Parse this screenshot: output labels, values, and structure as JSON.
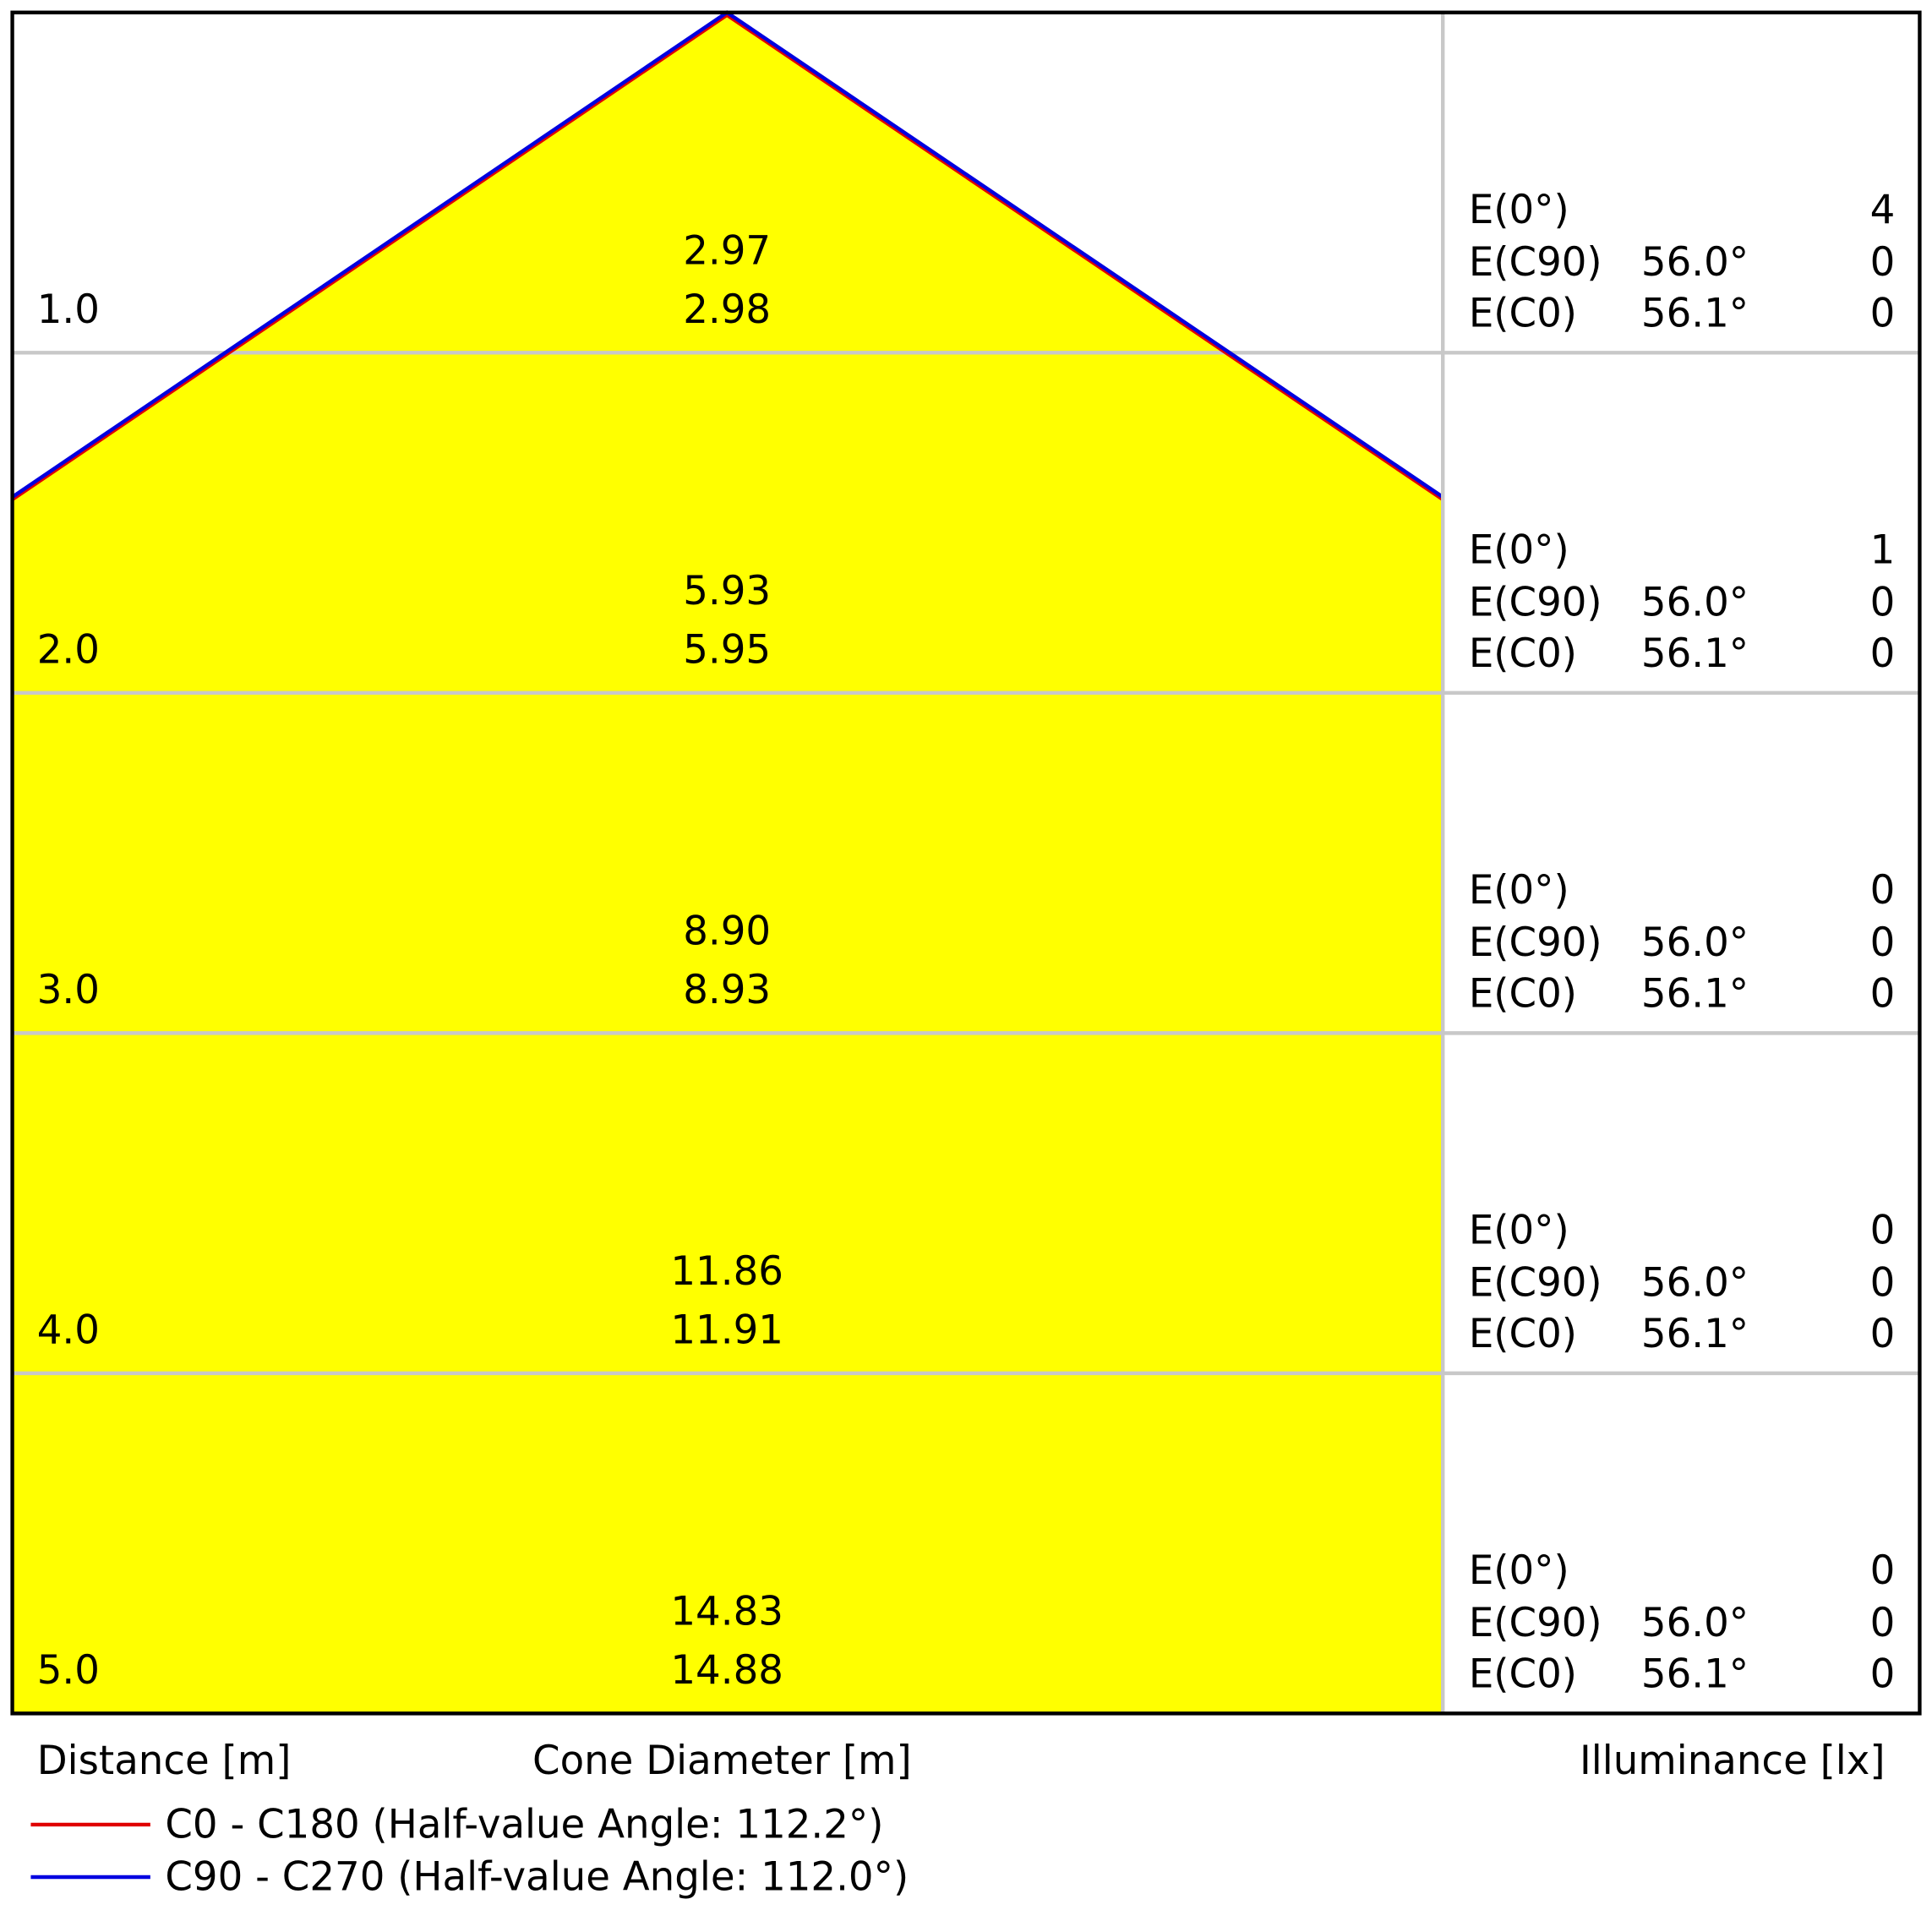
{
  "rows": [
    {
      "distance": "1.0",
      "diameter_c90": "2.97",
      "diameter_c0": "2.98",
      "e0_label": "E(0°)",
      "e0_value": "4",
      "c90_label": "E(C90)",
      "c90_angle": "56.0°",
      "c90_value": "0",
      "c0_label": "E(C0)",
      "c0_angle": "56.1°",
      "c0_value": "0"
    },
    {
      "distance": "2.0",
      "diameter_c90": "5.93",
      "diameter_c0": "5.95",
      "e0_label": "E(0°)",
      "e0_value": "1",
      "c90_label": "E(C90)",
      "c90_angle": "56.0°",
      "c90_value": "0",
      "c0_label": "E(C0)",
      "c0_angle": "56.1°",
      "c0_value": "0"
    },
    {
      "distance": "3.0",
      "diameter_c90": "8.90",
      "diameter_c0": "8.93",
      "e0_label": "E(0°)",
      "e0_value": "0",
      "c90_label": "E(C90)",
      "c90_angle": "56.0°",
      "c90_value": "0",
      "c0_label": "E(C0)",
      "c0_angle": "56.1°",
      "c0_value": "0"
    },
    {
      "distance": "4.0",
      "diameter_c90": "11.86",
      "diameter_c0": "11.91",
      "e0_label": "E(0°)",
      "e0_value": "0",
      "c90_label": "E(C90)",
      "c90_angle": "56.0°",
      "c90_value": "0",
      "c0_label": "E(C0)",
      "c0_angle": "56.1°",
      "c0_value": "0"
    },
    {
      "distance": "5.0",
      "diameter_c90": "14.83",
      "diameter_c0": "14.88",
      "e0_label": "E(0°)",
      "e0_value": "0",
      "c90_label": "E(C90)",
      "c90_angle": "56.0°",
      "c90_value": "0",
      "c0_label": "E(C0)",
      "c0_angle": "56.1°",
      "c0_value": "0"
    }
  ],
  "footer": {
    "distance": "Distance [m]",
    "diameter": "Cone Diameter [m]",
    "illuminance": "Illuminance [lx]"
  },
  "legend": [
    {
      "name": "C0 - C180 (Half-value Angle: 112.2°)",
      "color": "#e00000"
    },
    {
      "name": "C90 - C270 (Half-value Angle: 112.0°)",
      "color": "#0000e0"
    }
  ]
}
